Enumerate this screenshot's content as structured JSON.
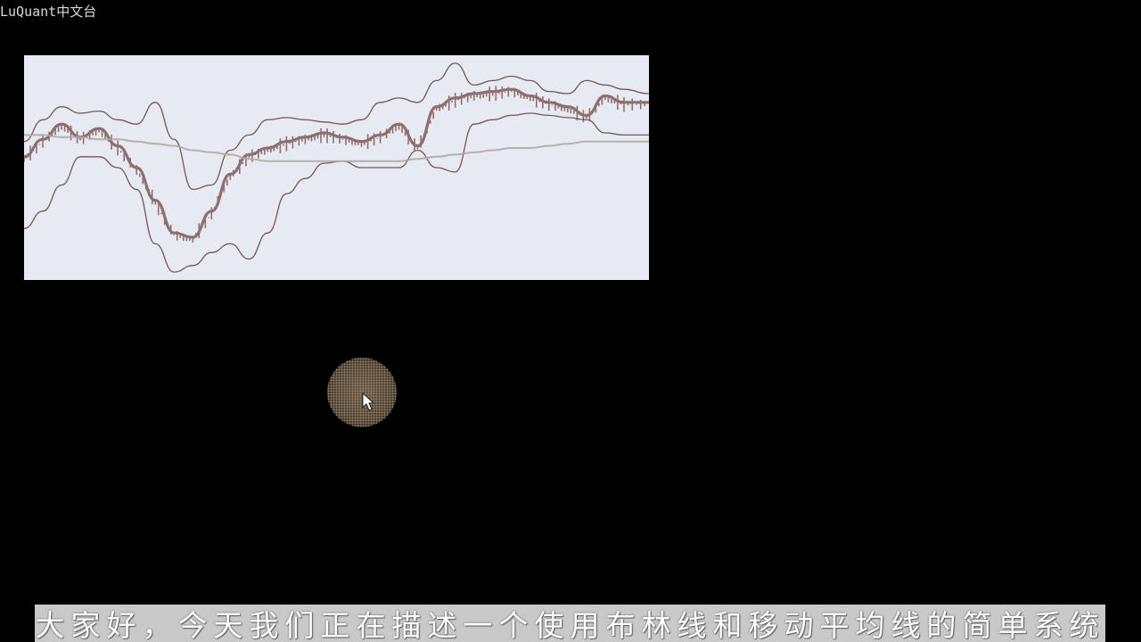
{
  "watermark": {
    "text": "LuQuant中文台"
  },
  "subtitle": {
    "text": "大家好，今天我们正在描述一个使用布林线和移动平均线的简单系统"
  },
  "chart": {
    "type": "line",
    "background": "#e6eaf2",
    "colors": {
      "price": "#8f6e6e",
      "bands": "#7a5454",
      "moving_average": "#b3a7a3"
    },
    "x_range": [
      0,
      100
    ],
    "y_range": [
      0,
      100
    ],
    "chart_data": {
      "type": "line",
      "x": [
        0,
        3,
        6,
        9,
        12,
        15,
        18,
        21,
        24,
        27,
        30,
        33,
        36,
        39,
        42,
        45,
        48,
        51,
        54,
        57,
        60,
        63,
        66,
        69,
        72,
        75,
        78,
        81,
        84,
        87,
        90,
        93,
        96,
        100
      ],
      "series": [
        {
          "key": "price",
          "values": [
            55,
            63,
            70,
            64,
            68,
            60,
            50,
            35,
            20,
            18,
            30,
            47,
            56,
            59,
            62,
            64,
            66,
            64,
            62,
            65,
            70,
            60,
            78,
            82,
            84,
            85,
            86,
            83,
            80,
            78,
            74,
            83,
            80,
            80
          ]
        },
        {
          "key": "upper_band",
          "values": [
            62,
            72,
            78,
            75,
            76,
            72,
            70,
            80,
            63,
            40,
            42,
            58,
            65,
            72,
            73,
            72,
            71,
            70,
            72,
            80,
            82,
            80,
            90,
            98,
            88,
            90,
            92,
            90,
            85,
            84,
            90,
            88,
            86,
            84
          ]
        },
        {
          "key": "lower_band",
          "values": [
            22,
            30,
            42,
            55,
            55,
            50,
            40,
            15,
            2,
            5,
            11,
            15,
            8,
            20,
            38,
            45,
            52,
            53,
            50,
            50,
            50,
            58,
            50,
            48,
            70,
            72,
            74,
            75,
            74,
            73,
            72,
            66,
            65,
            65
          ]
        },
        {
          "key": "moving_average",
          "values": [
            65,
            65,
            64,
            64,
            63,
            63,
            62,
            61,
            60,
            58,
            57,
            56,
            54,
            53,
            53,
            53,
            53,
            53,
            53,
            53,
            53,
            54,
            55,
            56,
            57,
            58,
            59,
            59,
            60,
            61,
            62,
            62,
            62,
            62
          ]
        }
      ]
    }
  }
}
